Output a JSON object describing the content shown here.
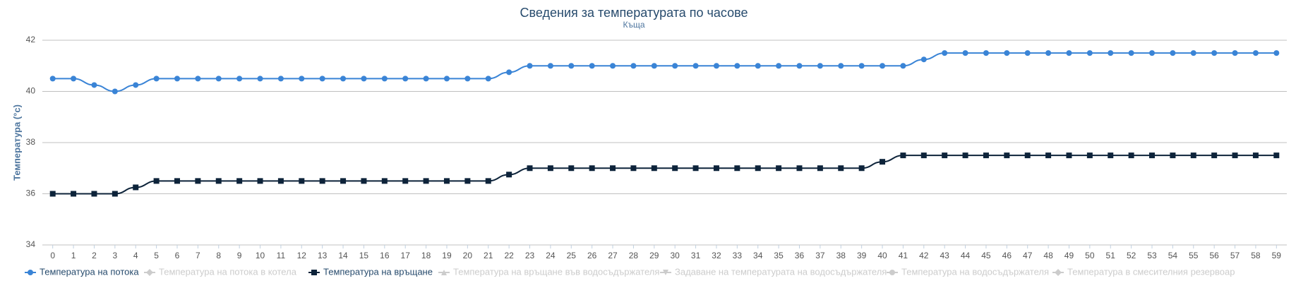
{
  "chart_data": {
    "type": "line",
    "title": "Сведения за температурата по часове",
    "subtitle": "Къща",
    "y_label": "Температура (°c)",
    "categories": [
      "0",
      "1",
      "2",
      "3",
      "4",
      "5",
      "6",
      "7",
      "8",
      "9",
      "10",
      "11",
      "12",
      "13",
      "14",
      "15",
      "16",
      "17",
      "18",
      "19",
      "20",
      "21",
      "22",
      "23",
      "24",
      "25",
      "26",
      "27",
      "28",
      "29",
      "30",
      "31",
      "32",
      "33",
      "34",
      "35",
      "36",
      "37",
      "38",
      "39",
      "40",
      "41",
      "42",
      "43",
      "44",
      "45",
      "46",
      "47",
      "48",
      "49",
      "50",
      "51",
      "52",
      "53",
      "54",
      "55",
      "56",
      "57",
      "58",
      "59"
    ],
    "series": [
      {
        "name": "Температура на потока",
        "color": "#3a84d6",
        "marker": "circle",
        "values": [
          40.5,
          40.5,
          40.25,
          40,
          40.25,
          40.5,
          40.5,
          40.5,
          40.5,
          40.5,
          40.5,
          40.5,
          40.5,
          40.5,
          40.5,
          40.5,
          40.5,
          40.5,
          40.5,
          40.5,
          40.5,
          40.5,
          40.75,
          41,
          41,
          41,
          41,
          41,
          41,
          41,
          41,
          41,
          41,
          41,
          41,
          41,
          41,
          41,
          41,
          41,
          41,
          41,
          41.25,
          41.5,
          41.5,
          41.5,
          41.5,
          41.5,
          41.5,
          41.5,
          41.5,
          41.5,
          41.5,
          41.5,
          41.5,
          41.5,
          41.5,
          41.5,
          41.5,
          41.5
        ]
      },
      {
        "name": "Температура на връщане",
        "color": "#0d233a",
        "marker": "square",
        "values": [
          36,
          36,
          36,
          36,
          36.25,
          36.5,
          36.5,
          36.5,
          36.5,
          36.5,
          36.5,
          36.5,
          36.5,
          36.5,
          36.5,
          36.5,
          36.5,
          36.5,
          36.5,
          36.5,
          36.5,
          36.5,
          36.75,
          37,
          37,
          37,
          37,
          37,
          37,
          37,
          37,
          37,
          37,
          37,
          37,
          37,
          37,
          37,
          37,
          37,
          37.25,
          37.5,
          37.5,
          37.5,
          37.5,
          37.5,
          37.5,
          37.5,
          37.5,
          37.5,
          37.5,
          37.5,
          37.5,
          37.5,
          37.5,
          37.5,
          37.5,
          37.5,
          37.5,
          37.5
        ]
      }
    ],
    "legend": [
      {
        "name": "Температура на потока",
        "visible": true,
        "series": 0
      },
      {
        "name": "Температура на потока в котела",
        "visible": false,
        "marker": "diamond"
      },
      {
        "name": "Температура на връщане",
        "visible": true,
        "series": 1
      },
      {
        "name": "Температура на връщане във водосъдържателя",
        "visible": false,
        "marker": "triangle"
      },
      {
        "name": "Задаване на температурата на водосъдържателя",
        "visible": false,
        "marker": "triangle-down"
      },
      {
        "name": "Температура на водосъдържателя",
        "visible": false,
        "marker": "circle"
      },
      {
        "name": "Температура в смесителния резервоар",
        "visible": false,
        "marker": "diamond"
      }
    ],
    "hidden_color": "#cccccc",
    "ylim": [
      34,
      42
    ],
    "yticks": [
      34,
      36,
      38,
      40,
      42
    ],
    "grid": true
  }
}
